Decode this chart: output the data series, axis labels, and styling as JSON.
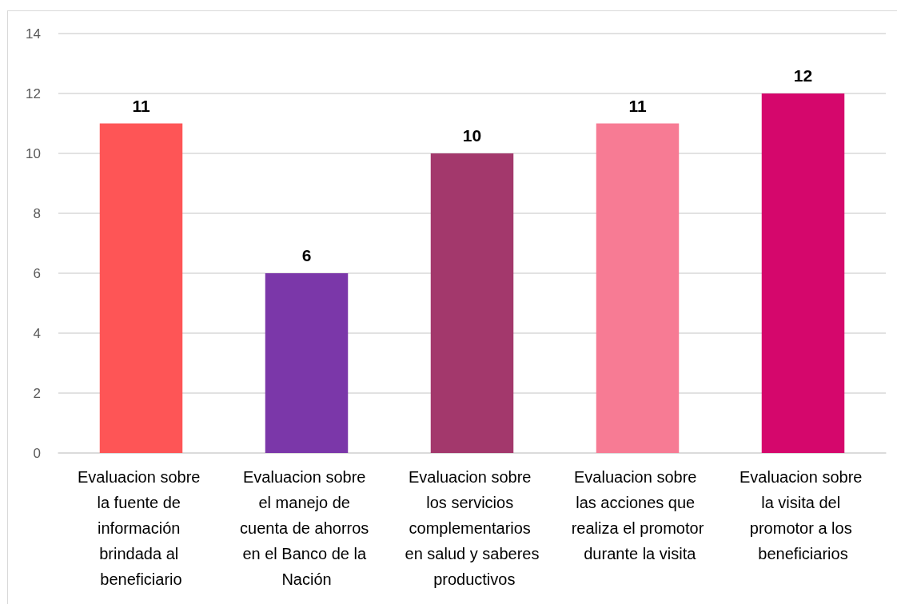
{
  "chart_data": {
    "type": "bar",
    "categories": [
      "Evaluacion sobre la fuente de información brindada al beneficiario",
      "Evaluacion sobre el manejo de cuenta de ahorros en el Banco de la Nación",
      "Evaluacion sobre los servicios complementarios en salud y saberes productivos",
      "Evaluacion sobre las acciones que realiza el promotor durante la visita",
      "Evaluacion sobre la visita del promotor a los beneficiarios"
    ],
    "values": [
      11,
      6,
      10,
      11,
      12
    ],
    "colors": [
      "#fe5556",
      "#7b37a9",
      "#a3386c",
      "#f77b94",
      "#d5076c"
    ],
    "ylim": [
      0,
      14
    ],
    "yticks": [
      0,
      2,
      4,
      6,
      8,
      10,
      12,
      14
    ],
    "grid": "y",
    "data_labels": true
  }
}
